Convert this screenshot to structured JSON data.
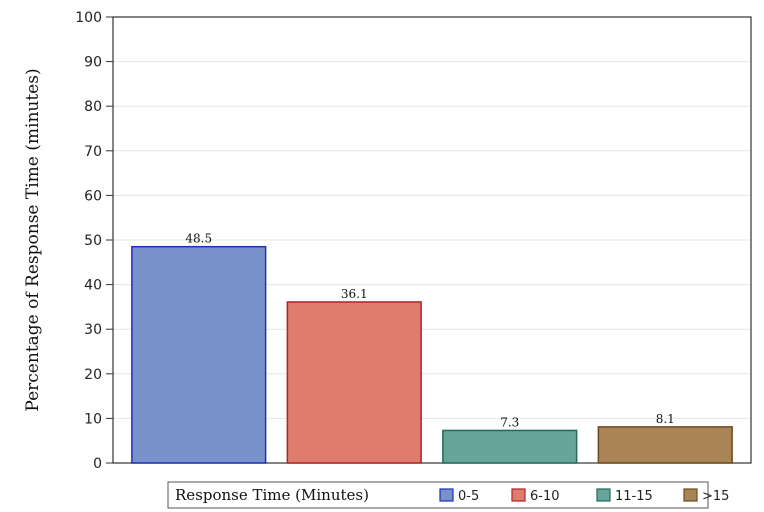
{
  "chart_data": {
    "type": "bar",
    "ylabel": "Percentage of Response Time (minutes)",
    "ylim": [
      0,
      100
    ],
    "yticks": [
      0,
      10,
      20,
      30,
      40,
      50,
      60,
      70,
      80,
      90,
      100
    ],
    "grid": true,
    "legend_position": "bottom",
    "legend_title": "Response Time (Minutes)",
    "categories": [
      "0-5",
      "6-10",
      "11-15",
      ">15"
    ],
    "values": [
      48.5,
      36.1,
      7.3,
      8.1
    ],
    "data_labels": [
      "48.5",
      "36.1",
      "7.3",
      "8.1"
    ],
    "colors": [
      "#7a92cc",
      "#df7d6d",
      "#67a49b",
      "#a88457"
    ],
    "edge_colors": [
      "#1f2fb8",
      "#b3202a",
      "#1f6b5c",
      "#6e4a1f"
    ]
  }
}
